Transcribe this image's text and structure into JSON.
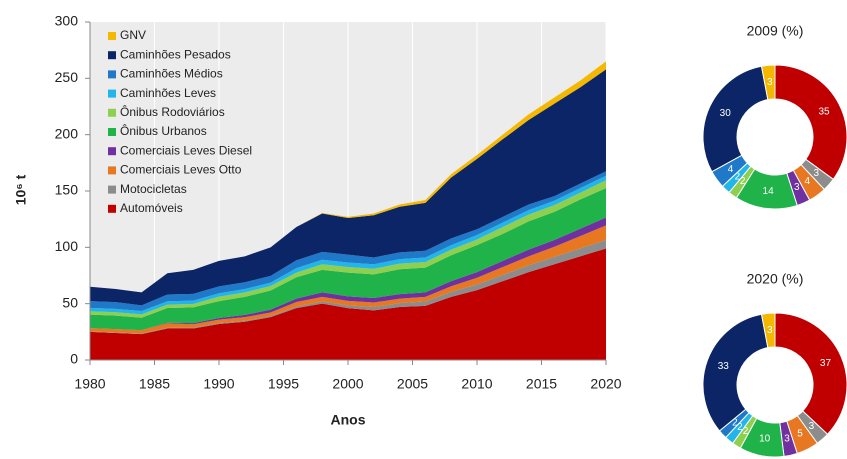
{
  "chart_data": [
    {
      "type": "stacked-area",
      "xlabel": "Anos",
      "ylabel": "10⁶ t",
      "x": [
        1980,
        1982,
        1984,
        1986,
        1988,
        1990,
        1992,
        1994,
        1996,
        1998,
        2000,
        2002,
        2004,
        2006,
        2008,
        2010,
        2012,
        2014,
        2016,
        2018,
        2020
      ],
      "xlim": [
        1980,
        2020
      ],
      "xticks": [
        1980,
        1985,
        1990,
        1995,
        2000,
        2005,
        2010,
        2015,
        2020
      ],
      "ylim": [
        0,
        300
      ],
      "yticks": [
        0,
        50,
        100,
        150,
        200,
        250,
        300
      ],
      "grid": true,
      "legend": "upper left",
      "series": [
        {
          "name": "Automóveis",
          "color": "#c00000",
          "values": [
            25,
            24,
            23,
            28,
            28,
            32,
            34,
            38,
            46,
            50,
            46,
            44,
            47,
            48,
            56,
            62,
            70,
            78,
            85,
            92,
            99
          ]
        },
        {
          "name": "Motocicletas",
          "color": "#8c8c8c",
          "values": [
            0.3,
            0.4,
            0.5,
            0.6,
            0.7,
            0.8,
            1,
            1.2,
            1.5,
            2,
            2.5,
            3,
            3.5,
            4,
            4.5,
            5,
            5.5,
            6,
            6.5,
            7,
            7.5
          ]
        },
        {
          "name": "Comerciais Leves Otto",
          "color": "#e87722",
          "values": [
            3,
            3,
            3,
            4,
            3,
            3,
            3,
            3,
            4,
            4,
            4,
            4,
            4,
            4,
            5,
            6,
            7,
            8,
            9,
            11,
            13
          ]
        },
        {
          "name": "Comerciais Leves Diesel",
          "color": "#7030a0",
          "values": [
            0,
            0,
            0,
            0.5,
            1,
            1.5,
            2,
            2.5,
            3,
            4,
            4,
            4,
            4,
            4,
            4.5,
            5,
            5.5,
            6,
            6,
            6.5,
            7
          ]
        },
        {
          "name": "Ônibus Urbanos",
          "color": "#1fb34a",
          "values": [
            12,
            12,
            11,
            13,
            14,
            15,
            16,
            17,
            19,
            20,
            21,
            21,
            22,
            22,
            23,
            24,
            24,
            25,
            25,
            26,
            26
          ]
        },
        {
          "name": "Ônibus Rodoviários",
          "color": "#8fcf4f",
          "values": [
            3,
            3,
            3,
            3,
            3,
            4,
            4,
            4,
            4,
            5,
            5,
            5,
            5,
            5,
            5,
            5,
            6,
            6,
            6,
            6,
            7
          ]
        },
        {
          "name": "Caminhões Leves",
          "color": "#22b5ea",
          "values": [
            3,
            3,
            3,
            3,
            3,
            3,
            3,
            3,
            4,
            4,
            4,
            4,
            4,
            4,
            4,
            4,
            4,
            4,
            4,
            4,
            4
          ]
        },
        {
          "name": "Caminhões Médios",
          "color": "#1f78c8",
          "values": [
            6,
            6,
            5,
            6,
            6,
            6,
            6,
            6,
            7,
            7,
            7,
            6,
            6,
            6,
            6,
            5,
            5,
            5,
            4,
            4,
            4
          ]
        },
        {
          "name": "Caminhões Pesados",
          "color": "#0b2566",
          "values": [
            12.7,
            11.6,
            11.5,
            18.9,
            21.3,
            22.7,
            23,
            25.3,
            29.5,
            34,
            32.5,
            37.5,
            40.5,
            42.5,
            54,
            62.5,
            69,
            75,
            82,
            85.5,
            90.5
          ]
        },
        {
          "name": "GNV",
          "color": "#f5b800",
          "values": [
            0,
            0,
            0,
            0,
            0,
            0,
            0,
            0,
            0,
            0.5,
            1,
            1.5,
            2,
            2.5,
            3,
            3.5,
            4,
            5,
            5.5,
            6,
            7
          ]
        }
      ]
    },
    {
      "type": "donut",
      "title": "2009 (%)",
      "values": [
        35,
        3,
        4,
        3,
        14,
        2,
        2,
        4,
        30,
        3
      ],
      "colors": [
        "#c00000",
        "#8c8c8c",
        "#e87722",
        "#7030a0",
        "#1fb34a",
        "#8fcf4f",
        "#22b5ea",
        "#1f78c8",
        "#0b2566",
        "#f5b800"
      ]
    },
    {
      "type": "donut",
      "title": "2020 (%)",
      "values": [
        37,
        3,
        5,
        3,
        10,
        2,
        2,
        2,
        33,
        3
      ],
      "colors": [
        "#c00000",
        "#8c8c8c",
        "#e87722",
        "#7030a0",
        "#1fb34a",
        "#8fcf4f",
        "#22b5ea",
        "#1f78c8",
        "#0b2566",
        "#f5b800"
      ]
    }
  ]
}
